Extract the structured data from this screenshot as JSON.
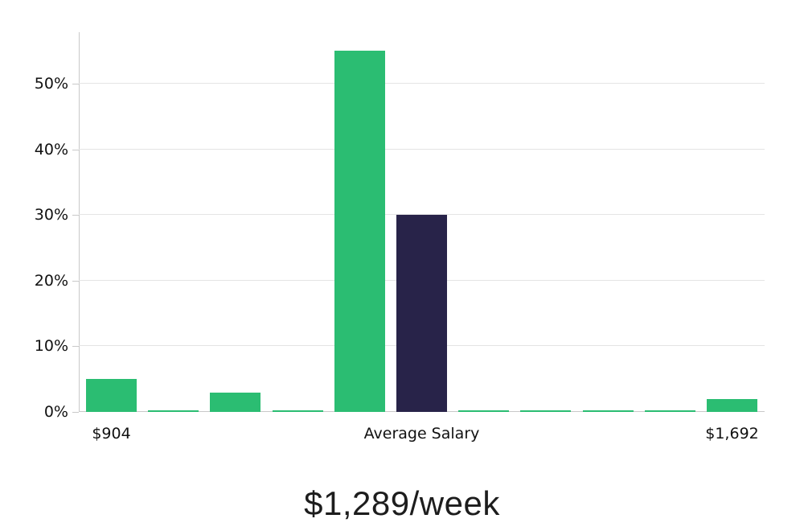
{
  "chart_data": {
    "type": "bar",
    "title": "$1,289/week",
    "y_axis": {
      "tick_labels": [
        "0%",
        "10%",
        "20%",
        "30%",
        "40%",
        "50%"
      ],
      "tick_values": [
        0,
        10,
        20,
        30,
        40,
        50
      ],
      "unit": "%",
      "range_shown": [
        0,
        57.8
      ],
      "grid": true
    },
    "x_axis": {
      "labels": [
        {
          "text": "$904",
          "bar_index": 0
        },
        {
          "text": "Average Salary",
          "bar_index": 5
        },
        {
          "text": "$1,692",
          "bar_index": 10
        }
      ],
      "min_value": "$904",
      "max_value": "$1,692"
    },
    "bars": {
      "count": 11,
      "values_percent": [
        5,
        0.25,
        3,
        0.25,
        55,
        30,
        0.25,
        0.25,
        0.25,
        0.25,
        2
      ],
      "highlight_index": 5,
      "highlight_meaning": "Average Salary"
    },
    "colors": {
      "bar_green": "#2BBD72",
      "bar_navy": "#282349",
      "gridline": "#e4e4e4",
      "axis_line": "#c9c9c9",
      "label_text": "#111111",
      "title_text": "#1d1d1d"
    },
    "legend": false
  }
}
